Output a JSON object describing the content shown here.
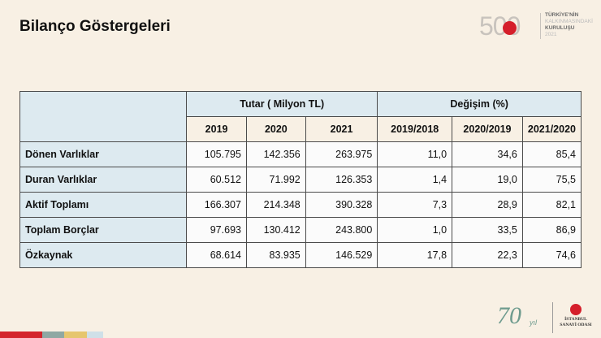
{
  "title": "Bilanço Göstergeleri",
  "header_logo": {
    "number": "500",
    "line1": "TÜRKİYE'NİN",
    "line2": "KALKINMASINDAKİ",
    "line3": "KURULUŞU",
    "year": "2021"
  },
  "table": {
    "group1_label": "Tutar ( Milyon TL)",
    "group2_label": "Değişim (%)",
    "years": [
      "2019",
      "2020",
      "2021"
    ],
    "periods": [
      "2019/2018",
      "2020/2019",
      "2021/2020"
    ],
    "rows": [
      {
        "label": "Dönen Varlıklar",
        "values": [
          "105.795",
          "142.356",
          "263.975"
        ],
        "changes": [
          "11,0",
          "34,6",
          "85,4"
        ]
      },
      {
        "label": "Duran Varlıklar",
        "values": [
          "60.512",
          "71.992",
          "126.353"
        ],
        "changes": [
          "1,4",
          "19,0",
          "75,5"
        ]
      },
      {
        "label": "Aktif Toplamı",
        "values": [
          "166.307",
          "214.348",
          "390.328"
        ],
        "changes": [
          "7,3",
          "28,9",
          "82,1"
        ]
      },
      {
        "label": "Toplam Borçlar",
        "values": [
          "97.693",
          "130.412",
          "243.800"
        ],
        "changes": [
          "1,0",
          "33,5",
          "86,9"
        ]
      },
      {
        "label": "Özkaynak",
        "values": [
          "68.614",
          "83.935",
          "146.529"
        ],
        "changes": [
          "17,8",
          "22,3",
          "74,6"
        ]
      }
    ]
  },
  "footer": {
    "anniversary_number": "70",
    "anniversary_word": "yıl",
    "org_line1": "İSTANBUL",
    "org_line2": "SANAYİ ODASI"
  },
  "stripe_colors": [
    "#d4242c",
    "#8fa8a3",
    "#e6c66e",
    "#cfe0e8"
  ]
}
